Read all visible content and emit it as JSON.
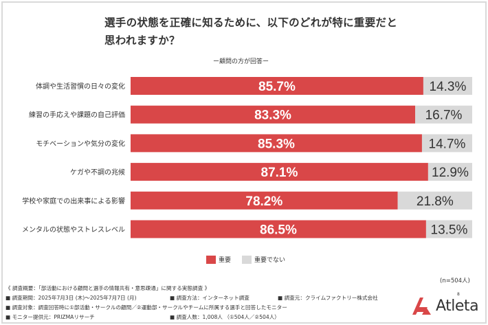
{
  "title_lines": [
    "選手の状態を正確に知るために、以下のどれが特に重要だと",
    "思われますか？"
  ],
  "subtitle": "ー顧問の方が回答ー",
  "n_note": "(n=504人)",
  "colors": {
    "important": "#d94748",
    "not_important": "#d9d9d9"
  },
  "chart_data": {
    "type": "bar",
    "orientation": "horizontal-stacked-100",
    "categories": [
      "体調や生活習慣の日々の変化",
      "練習の手応えや課題の自己評価",
      "モチベーションや気分の変化",
      "ケガや不調の兆候",
      "学校や家庭での出来事による影響",
      "メンタルの状態やストレスレベル"
    ],
    "series": [
      {
        "name": "重要",
        "values": [
          85.7,
          83.3,
          85.3,
          87.1,
          78.2,
          86.5
        ],
        "labels": [
          "85.7%",
          "83.3%",
          "85.3%",
          "87.1%",
          "78.2%",
          "86.5%"
        ]
      },
      {
        "name": "重要でない",
        "values": [
          14.3,
          16.7,
          14.7,
          12.9,
          21.8,
          13.5
        ],
        "labels": [
          "14.3%",
          "16.7%",
          "14.7%",
          "12.9%",
          "21.8%",
          "13.5%"
        ]
      }
    ],
    "xlim": [
      0,
      100
    ],
    "legend_position": "bottom-center"
  },
  "legend": {
    "important": "重要",
    "not_important": "重要でない"
  },
  "footnote": {
    "line1": "《 調査概要：「部活動における顧問と選手の情報共有・意思疎通」に関する実態調査 》",
    "period": "■ 調査期間：2025年7月3日 (木)〜2025年7月7日 (月)",
    "method": "■ 調査方法：インターネット調査",
    "org": "■ 調査元：クライムファクトリー株式会社",
    "target": "■ 調査対象：調査回答時に①部活動・サークルの顧問／②運動部・サークルやチームに所属する選手と回答したモニター",
    "provider": "■ モニター提供元：PRIZMAリサーチ",
    "count": "■ 調査人数：1,008人 （①504人／②504人）"
  },
  "logo": {
    "text": "Atleta",
    "sup": "8"
  }
}
